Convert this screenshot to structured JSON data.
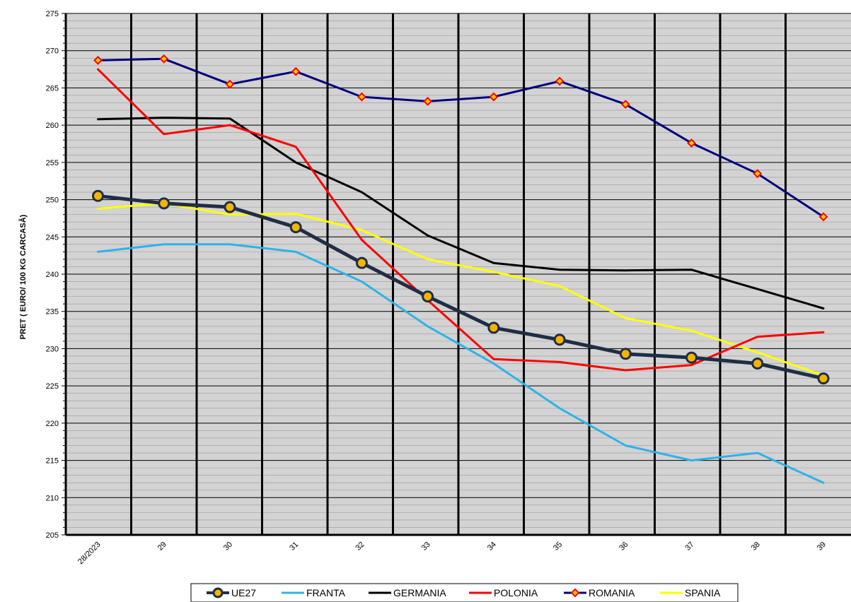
{
  "chart_data": {
    "type": "line",
    "title": "",
    "xlabel": "",
    "ylabel": "PRET ( EURO/ 100 KG CARCASĂ)",
    "categories": [
      "28/2023",
      "29",
      "30",
      "31",
      "32",
      "33",
      "34",
      "35",
      "36",
      "37",
      "38",
      "39"
    ],
    "ylim": [
      205,
      275
    ],
    "yticks": [
      205,
      210,
      215,
      220,
      225,
      230,
      235,
      240,
      245,
      250,
      255,
      260,
      265,
      270,
      275
    ],
    "grid": true,
    "legend_position": "bottom",
    "series": [
      {
        "name": "UE27",
        "color": "#1F2E45",
        "marker": "circle-gold",
        "values": [
          250.5,
          249.5,
          249.0,
          246.3,
          241.5,
          237.0,
          232.8,
          231.2,
          229.3,
          228.8,
          228.0,
          226.0
        ]
      },
      {
        "name": "FRANTA",
        "color": "#2DB3EA",
        "marker": "none",
        "values": [
          243.0,
          244.0,
          244.0,
          243.0,
          239.0,
          233.0,
          228.0,
          222.0,
          217.0,
          215.0,
          216.0,
          212.0
        ]
      },
      {
        "name": "GERMANIA",
        "color": "#000000",
        "marker": "none",
        "values": [
          260.8,
          261.0,
          260.9,
          255.0,
          251.0,
          245.2,
          241.5,
          240.6,
          240.5,
          240.6,
          238.0,
          235.4
        ]
      },
      {
        "name": "POLONIA",
        "color": "#FF0000",
        "marker": "none",
        "values": [
          267.5,
          258.8,
          260.0,
          257.1,
          244.6,
          236.5,
          228.6,
          228.2,
          227.1,
          227.8,
          231.6,
          232.2
        ]
      },
      {
        "name": "ROMANIA",
        "color": "#000080",
        "marker": "diamond-red",
        "values": [
          268.7,
          268.9,
          265.5,
          267.2,
          263.8,
          263.2,
          263.8,
          265.9,
          262.8,
          257.6,
          253.5,
          247.7
        ]
      },
      {
        "name": "SPANIA",
        "color": "#FFFF00",
        "marker": "none",
        "values": [
          248.8,
          249.5,
          248.0,
          248.1,
          245.9,
          242.0,
          240.3,
          238.4,
          234.1,
          232.4,
          229.5,
          226.4
        ]
      }
    ]
  }
}
